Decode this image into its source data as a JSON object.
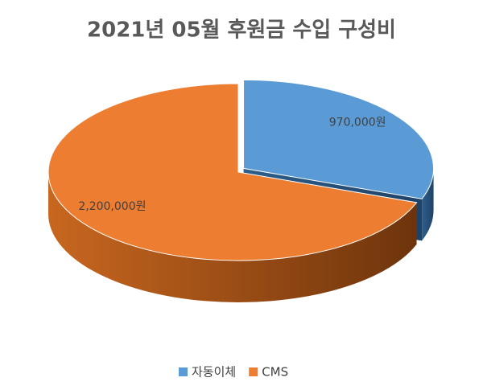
{
  "chart_data": {
    "type": "pie3d",
    "title": "2021년 05월 후원금 수입 구성비",
    "categories": [
      "자동이체",
      "CMS"
    ],
    "values": [
      970000,
      2200000
    ],
    "value_labels": [
      "970,000원",
      "2,200,000원"
    ],
    "colors": [
      "#5b9bd5",
      "#ed7d31"
    ],
    "legend": "bottom"
  }
}
